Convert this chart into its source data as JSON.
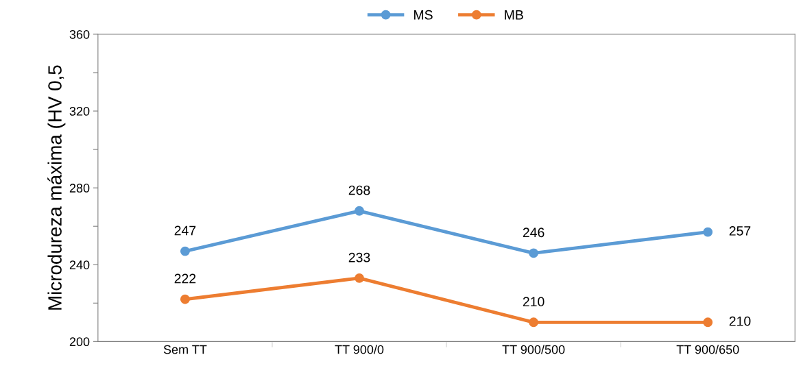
{
  "chart_data": {
    "type": "line",
    "ylabel": "Microdureza máxima (HV 0,5",
    "categories": [
      "Sem TT",
      "TT 900/0",
      "TT 900/500",
      "TT 900/650"
    ],
    "series": [
      {
        "name": "MS",
        "color": "#5b9bd5",
        "values": [
          247,
          268,
          246,
          257
        ]
      },
      {
        "name": "MB",
        "color": "#ed7d31",
        "values": [
          222,
          233,
          210,
          210
        ]
      }
    ],
    "ylim": [
      200,
      360
    ],
    "yticks": [
      200,
      {
        "value": 220,
        "label": null
      },
      240,
      {
        "value": 260,
        "label": null
      },
      280,
      {
        "value": 300,
        "label": null
      },
      320,
      {
        "value": 340,
        "label": null
      },
      360
    ],
    "data_labels": true,
    "legend": "top",
    "marker": "circle",
    "line_style": "solid",
    "grid": false
  }
}
